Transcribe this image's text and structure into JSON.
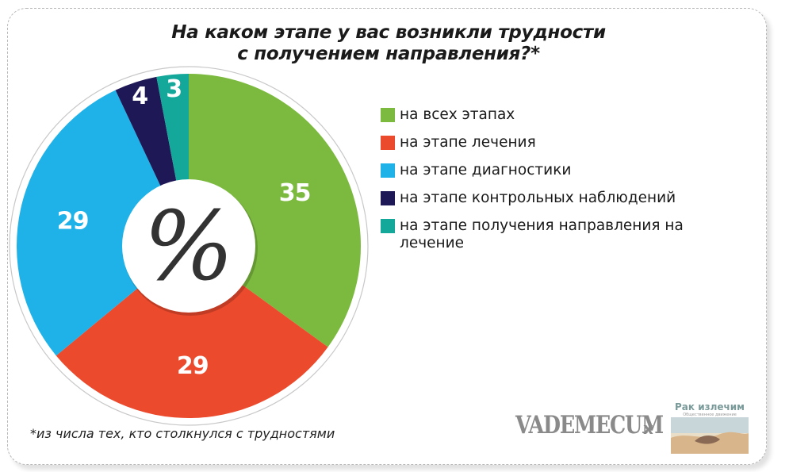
{
  "title_line1": "На каком этапе у вас возникли трудности",
  "title_line2": "с получением направления?*",
  "footnote": "*из числа тех, кто столкнулся с трудностями",
  "center_symbol": "%",
  "brand": {
    "vademecum": "VADEMECUM",
    "separator": "x",
    "partner_name": "Рак излечим",
    "partner_sub": "Общественное движение"
  },
  "chart_data": {
    "type": "pie",
    "unit": "%",
    "categories": [
      "на всех этапах",
      "на этапе лечения",
      "на этапе диагностики",
      "на этапе контрольных наблюдений",
      "на этапе получения направления на лечение"
    ],
    "values": [
      35,
      29,
      29,
      4,
      3
    ],
    "colors": [
      "#7cba3f",
      "#ec4a2c",
      "#1fb2e8",
      "#1f1856",
      "#14a89a"
    ],
    "start": "12 o'clock, clockwise",
    "donut": true,
    "legend_position": "right"
  }
}
